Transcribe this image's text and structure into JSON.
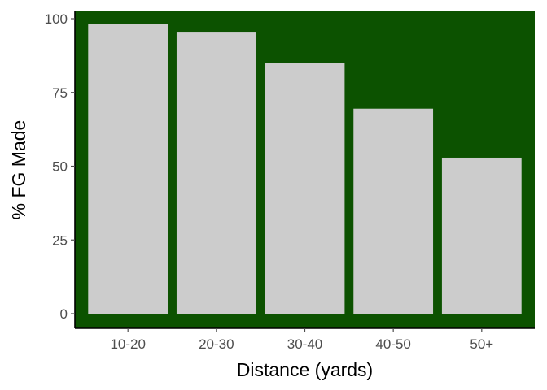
{
  "chart_data": {
    "type": "bar",
    "title": "",
    "xlabel": "Distance (yards)",
    "ylabel": "% FG Made",
    "categories": [
      "10-20",
      "20-30",
      "30-40",
      "40-50",
      "50+"
    ],
    "values": [
      98.3,
      95.3,
      85.0,
      69.5,
      52.9
    ],
    "ylim": [
      0,
      100
    ],
    "yticks": [
      0,
      25,
      50,
      75,
      100
    ],
    "grid": false,
    "legend": "none",
    "colors": {
      "panel": "#0c5200",
      "bar": "#cccccc",
      "axis": "#000000",
      "tick_text": "#4d4d4d"
    }
  }
}
